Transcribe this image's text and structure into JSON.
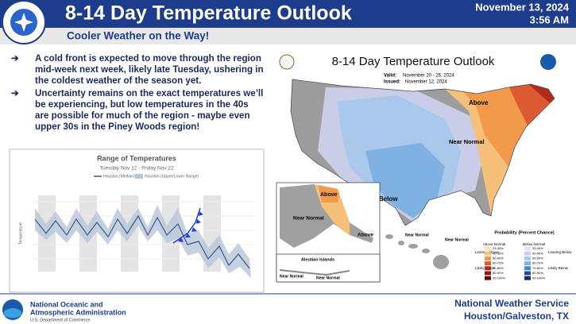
{
  "header": {
    "logo_text": "NATIONAL WEATHER SERVICE",
    "title": "8-14 Day Temperature Outlook",
    "date": "November 13, 2024",
    "time": "3:56 AM",
    "subtitle": "Cooler Weather on the Way!"
  },
  "bullets": [
    "A cold front is expected to move through the region mid-week next week, likely late Tuesday, ushering in the coldest weather of the season yet.",
    "Uncertainty remains on the exact temperatures we’ll be experiencing, but low temperatures in the 40s are possible for much of the region - maybe even upper 30s in the Piney Woods region!"
  ],
  "range_chart": {
    "title": "Range of Temperatures",
    "subtitle": "Tuesday Nov 12 - Friday Nov 22",
    "legend": [
      "Houston (Median)",
      "Houston (Upper/Lower Range)"
    ],
    "y_label": "Temperature"
  },
  "map": {
    "title": "8-14 Day Temperature Outlook",
    "valid_label": "Valid:",
    "valid": "November 20 - 26, 2024",
    "issued_label": "Issued:",
    "issued": "November 12, 2024",
    "regions": {
      "conus_above": "Above",
      "conus_near": "Near Normal",
      "conus_below": "Below",
      "ak_above": "Above",
      "ak_near": "Near Normal",
      "ak_above_south": "Above",
      "aleutian": "Aleutian Islands",
      "aleutian_near": "Near Normal",
      "aleutian_near_2": "Near Normal",
      "hi_near": "Near Normal",
      "hi_near_2": "Near Normal"
    },
    "legend": {
      "title": "Probability (Percent Chance)",
      "above": "Above Normal",
      "below": "Below Normal",
      "leaning_above": "Leaning Above",
      "likely_above": "Likely Above",
      "leaning_below": "Leaning Below",
      "likely_below": "Likely Below",
      "bins": [
        "33-40%",
        "40-50%",
        "50-60%",
        "60-70%",
        "70-80%",
        "80-90%",
        "90-100%"
      ]
    }
  },
  "footer": {
    "noaa_line1": "National Oceanic and",
    "noaa_line2": "Atmospheric Administration",
    "noaa_line3": "U.S. Department of Commerce",
    "nws_line1": "National Weather Service",
    "nws_line2": "Houston/Galveston, TX"
  }
}
